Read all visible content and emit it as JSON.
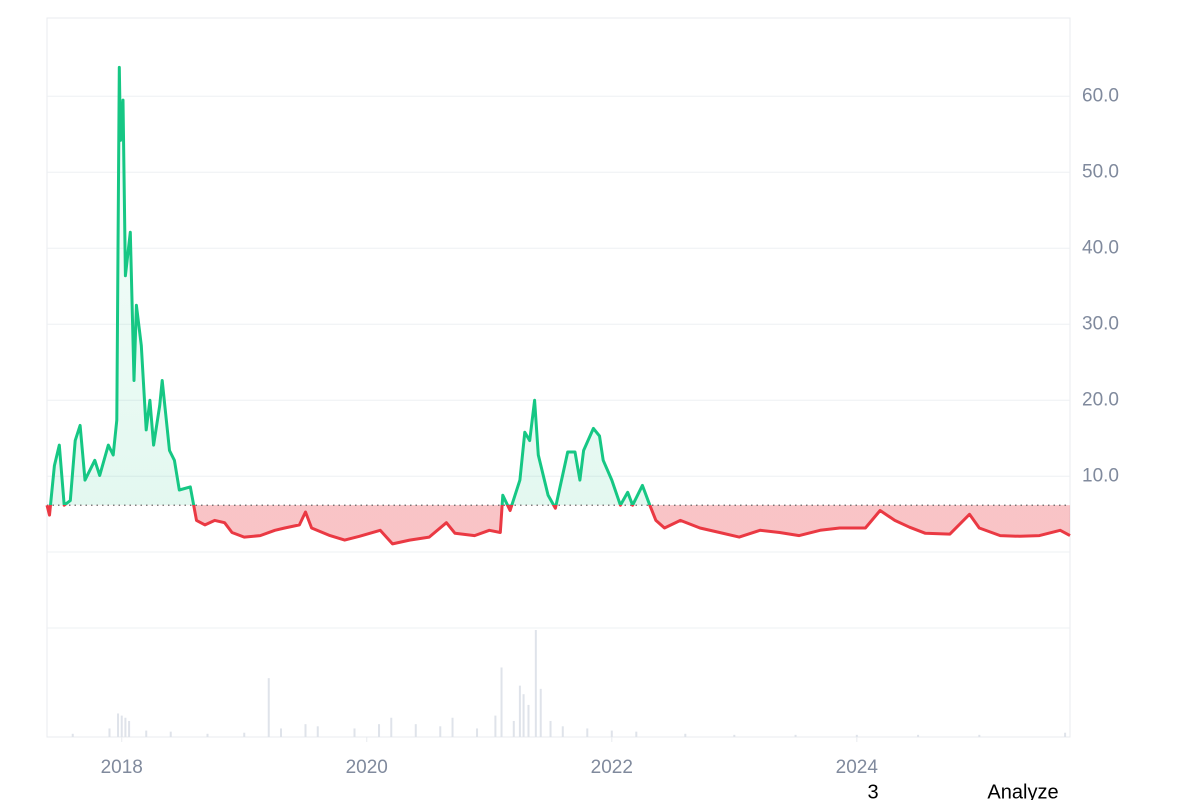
{
  "chart_data": {
    "type": "baseline",
    "x": [
      2017.39,
      2017.41,
      2017.45,
      2017.49,
      2017.53,
      2017.58,
      2017.62,
      2017.66,
      2017.7,
      2017.78,
      2017.82,
      2017.89,
      2017.93,
      2017.96,
      2017.98,
      2017.99,
      2018.01,
      2018.03,
      2018.07,
      2018.1,
      2018.12,
      2018.16,
      2018.2,
      2018.23,
      2018.26,
      2018.31,
      2018.33,
      2018.39,
      2018.43,
      2018.47,
      2018.56,
      2018.61,
      2018.68,
      2018.76,
      2018.84,
      2018.9,
      2019.0,
      2019.13,
      2019.25,
      2019.33,
      2019.45,
      2019.5,
      2019.55,
      2019.7,
      2019.82,
      2019.94,
      2020.11,
      2020.21,
      2020.35,
      2020.51,
      2020.65,
      2020.72,
      2020.88,
      2021.0,
      2021.09,
      2021.11,
      2021.17,
      2021.25,
      2021.29,
      2021.33,
      2021.37,
      2021.4,
      2021.45,
      2021.48,
      2021.54,
      2021.64,
      2021.7,
      2021.74,
      2021.77,
      2021.85,
      2021.9,
      2021.93,
      2022.0,
      2022.07,
      2022.13,
      2022.17,
      2022.25,
      2022.31,
      2022.36,
      2022.43,
      2022.56,
      2022.72,
      2022.88,
      2023.04,
      2023.21,
      2023.37,
      2023.53,
      2023.7,
      2023.86,
      2024.07,
      2024.19,
      2024.31,
      2024.43,
      2024.56,
      2024.76,
      2024.92,
      2025.0,
      2025.17,
      2025.33,
      2025.49,
      2025.66,
      2025.74
    ],
    "values": [
      6.2,
      4.9,
      11.4,
      14.1,
      6.2,
      6.8,
      14.7,
      16.7,
      9.5,
      12.1,
      10.1,
      14.1,
      12.8,
      17.4,
      63.8,
      54.2,
      59.5,
      36.4,
      42.1,
      22.6,
      32.5,
      27.2,
      16.1,
      20.0,
      14.1,
      19.3,
      22.6,
      13.4,
      12.1,
      8.2,
      8.6,
      4.2,
      3.6,
      4.2,
      3.9,
      2.6,
      2.0,
      2.2,
      2.9,
      3.2,
      3.6,
      5.3,
      3.2,
      2.2,
      1.6,
      2.1,
      2.9,
      1.1,
      1.6,
      2.0,
      3.9,
      2.5,
      2.2,
      2.9,
      2.6,
      7.5,
      5.5,
      9.5,
      15.8,
      14.7,
      20.0,
      12.8,
      9.5,
      7.5,
      5.8,
      13.2,
      13.2,
      9.5,
      13.4,
      16.3,
      15.3,
      12.1,
      9.5,
      6.2,
      7.9,
      6.2,
      8.8,
      6.2,
      4.2,
      3.2,
      4.2,
      3.2,
      2.6,
      2.0,
      2.9,
      2.6,
      2.2,
      2.9,
      3.2,
      3.2,
      5.5,
      4.2,
      3.3,
      2.5,
      2.4,
      5.0,
      3.2,
      2.2,
      2.1,
      2.2,
      2.9,
      2.2
    ],
    "baseline": 6.2,
    "up_color": "#16c784",
    "down_color": "#ea3943",
    "xlim": [
      2017.39,
      2025.74
    ],
    "xticks": [
      2018,
      2020,
      2022,
      2024
    ],
    "ylim": [
      -24.3,
      70.3
    ],
    "yticks": [
      {
        "value": 10,
        "label": "10.0"
      },
      {
        "value": 20,
        "label": "20.0"
      },
      {
        "value": 30,
        "label": "30.0"
      },
      {
        "value": 40,
        "label": "40.0"
      },
      {
        "value": 50,
        "label": "50.0"
      },
      {
        "value": 60,
        "label": "60.0"
      }
    ],
    "grid": true,
    "volume": {
      "color": "#dfe3ea",
      "ylim": [
        0,
        100
      ],
      "x": [
        2017.6,
        2017.9,
        2017.97,
        2018.0,
        2018.03,
        2018.06,
        2018.2,
        2018.4,
        2018.7,
        2019.0,
        2019.2,
        2019.3,
        2019.5,
        2019.6,
        2019.9,
        2020.1,
        2020.2,
        2020.4,
        2020.6,
        2020.7,
        2020.9,
        2021.05,
        2021.1,
        2021.2,
        2021.25,
        2021.28,
        2021.32,
        2021.38,
        2021.42,
        2021.5,
        2021.6,
        2021.8,
        2022.0,
        2022.2,
        2022.6,
        2023.0,
        2023.5,
        2024.0,
        2024.5,
        2025.0,
        2025.7
      ],
      "values": [
        3,
        8,
        22,
        20,
        18,
        15,
        6,
        5,
        3,
        4,
        55,
        8,
        12,
        10,
        8,
        12,
        18,
        12,
        10,
        18,
        8,
        20,
        65,
        15,
        48,
        40,
        30,
        100,
        45,
        15,
        10,
        8,
        6,
        5,
        3,
        2,
        2,
        2,
        2,
        2,
        4
      ]
    },
    "overlay": {
      "badge": "3",
      "button": "Analyze"
    }
  }
}
